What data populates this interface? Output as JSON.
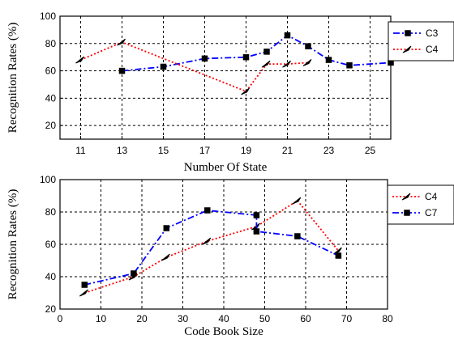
{
  "chart_data": [
    {
      "type": "line",
      "xlabel": "Number Of State",
      "ylabel": "Recognition Rates (%)",
      "xlim": [
        10,
        26
      ],
      "ylim": [
        10,
        100
      ],
      "xticks": [
        11,
        13,
        15,
        17,
        19,
        21,
        23,
        25
      ],
      "yticks": [
        20,
        40,
        60,
        80,
        100
      ],
      "grid": true,
      "legend_position": "top-right, outside",
      "series": [
        {
          "name": "C3",
          "color": "#0000ff",
          "style": "dash-dot",
          "marker": "square",
          "x": [
            13,
            15,
            17,
            19,
            20,
            21,
            22,
            23,
            24,
            26
          ],
          "y": [
            60,
            63,
            69,
            70,
            74,
            86,
            78,
            68,
            64,
            66
          ]
        },
        {
          "name": "C4",
          "color": "#ff0000",
          "style": "dotted",
          "marker": "arrow",
          "x": [
            11,
            13,
            19,
            20,
            21,
            22
          ],
          "y": [
            68,
            81,
            45,
            65,
            65,
            66
          ]
        }
      ]
    },
    {
      "type": "line",
      "xlabel": "Code Book Size",
      "ylabel": "Recognition Rates (%)",
      "xlim": [
        0,
        80
      ],
      "ylim": [
        20,
        100
      ],
      "xticks": [
        0,
        10,
        20,
        30,
        40,
        50,
        60,
        70,
        80
      ],
      "yticks": [
        20,
        40,
        60,
        80,
        100
      ],
      "grid": true,
      "legend_position": "top-right, outside",
      "series": [
        {
          "name": "C4",
          "color": "#ff0000",
          "style": "dotted",
          "marker": "arrow",
          "x": [
            6,
            18,
            26,
            36,
            48,
            58,
            68
          ],
          "y": [
            30,
            40,
            52,
            62,
            71,
            87,
            56
          ]
        },
        {
          "name": "C7",
          "color": "#0000ff",
          "style": "dash-dot",
          "marker": "square",
          "x": [
            6,
            18,
            26,
            36,
            48,
            48,
            58,
            68
          ],
          "y": [
            35,
            42,
            70,
            81,
            78,
            68,
            65,
            53
          ]
        }
      ]
    }
  ]
}
